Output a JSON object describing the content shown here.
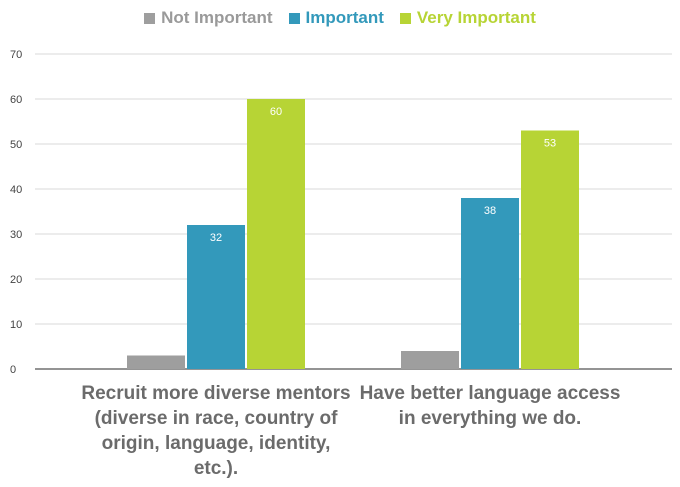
{
  "chart_data": {
    "type": "bar",
    "categories": [
      "Recruit more diverse mentors (diverse in race, country of origin, language, identity, etc.).",
      "Have better language access in everything we do."
    ],
    "series": [
      {
        "name": "Not Important",
        "color": "#9e9e9e",
        "values": [
          3,
          4
        ]
      },
      {
        "name": "Important",
        "color": "#3399bb",
        "values": [
          32,
          38
        ]
      },
      {
        "name": "Very Important",
        "color": "#b7d435",
        "values": [
          60,
          53
        ]
      }
    ],
    "data_labels": [
      [
        "",
        ""
      ],
      [
        "32",
        "38"
      ],
      [
        "60",
        "53"
      ]
    ],
    "ylim": [
      0,
      70
    ],
    "yticks": [
      0,
      10,
      20,
      30,
      40,
      50,
      60,
      70
    ],
    "grid": true,
    "legend_position": "top"
  }
}
